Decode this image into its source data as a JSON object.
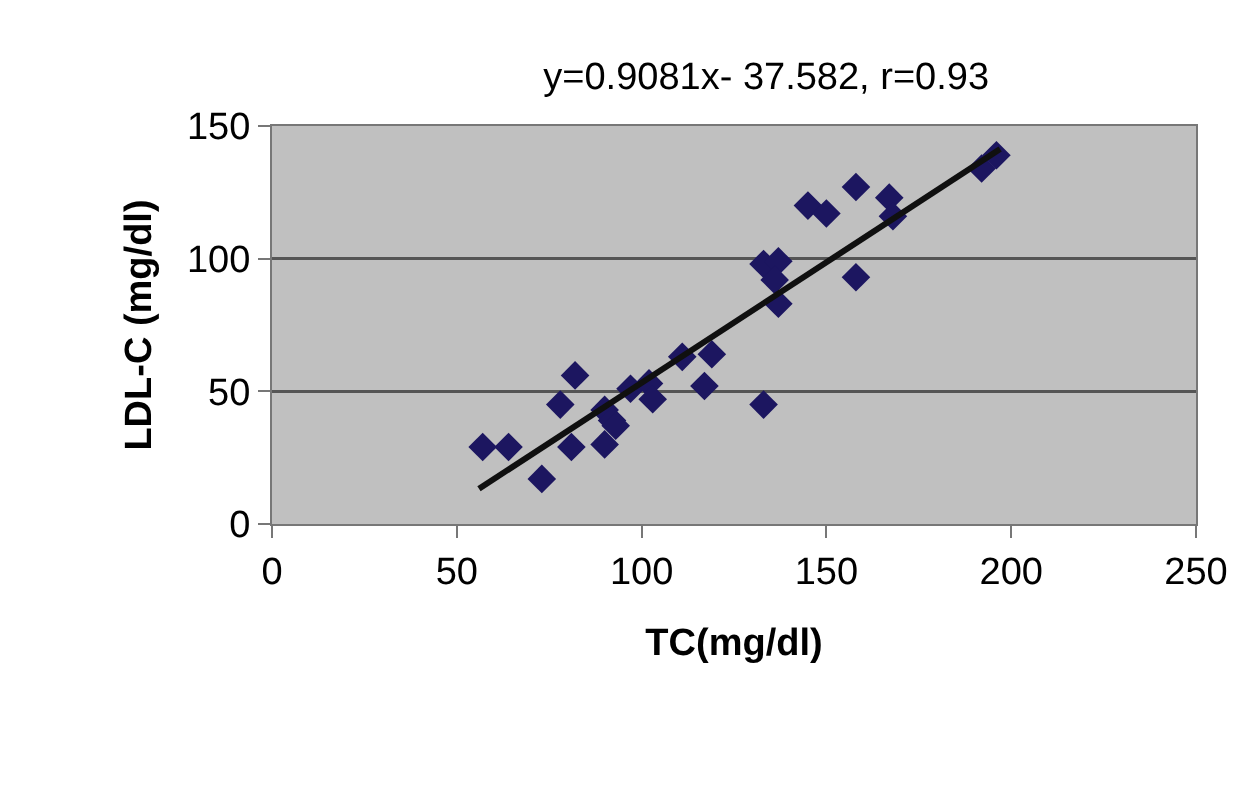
{
  "chart_data": {
    "type": "scatter",
    "title": "y=0.9081x- 37.582, r=0.93",
    "xlabel": "TC(mg/dl)",
    "ylabel": "LDL-C (mg/dl)",
    "xlim": [
      0,
      250
    ],
    "xticks": [
      0,
      50,
      100,
      150,
      200,
      250
    ],
    "ylim": [
      0,
      150
    ],
    "yticks": [
      0,
      50,
      100,
      150
    ],
    "grid": "y",
    "series": [
      {
        "marker": "diamond",
        "color": "#1c1660",
        "x": [
          57,
          64,
          73,
          78,
          82,
          81,
          90,
          90,
          92,
          93,
          97,
          102,
          103,
          111,
          119,
          117,
          133,
          133,
          137,
          136,
          137,
          145,
          150,
          158,
          158,
          167,
          168,
          192,
          196
        ],
        "values": [
          29,
          29,
          17,
          45,
          56,
          29,
          30,
          43,
          39,
          37,
          51,
          53,
          47,
          63,
          64,
          52,
          45,
          98,
          99,
          92,
          83,
          120,
          117,
          127,
          93,
          123,
          116,
          134,
          139
        ]
      },
      {
        "type": "line",
        "marker": "none",
        "color": "#101010",
        "x": [
          56,
          197
        ],
        "values": [
          13.3,
          141.3
        ]
      }
    ]
  }
}
